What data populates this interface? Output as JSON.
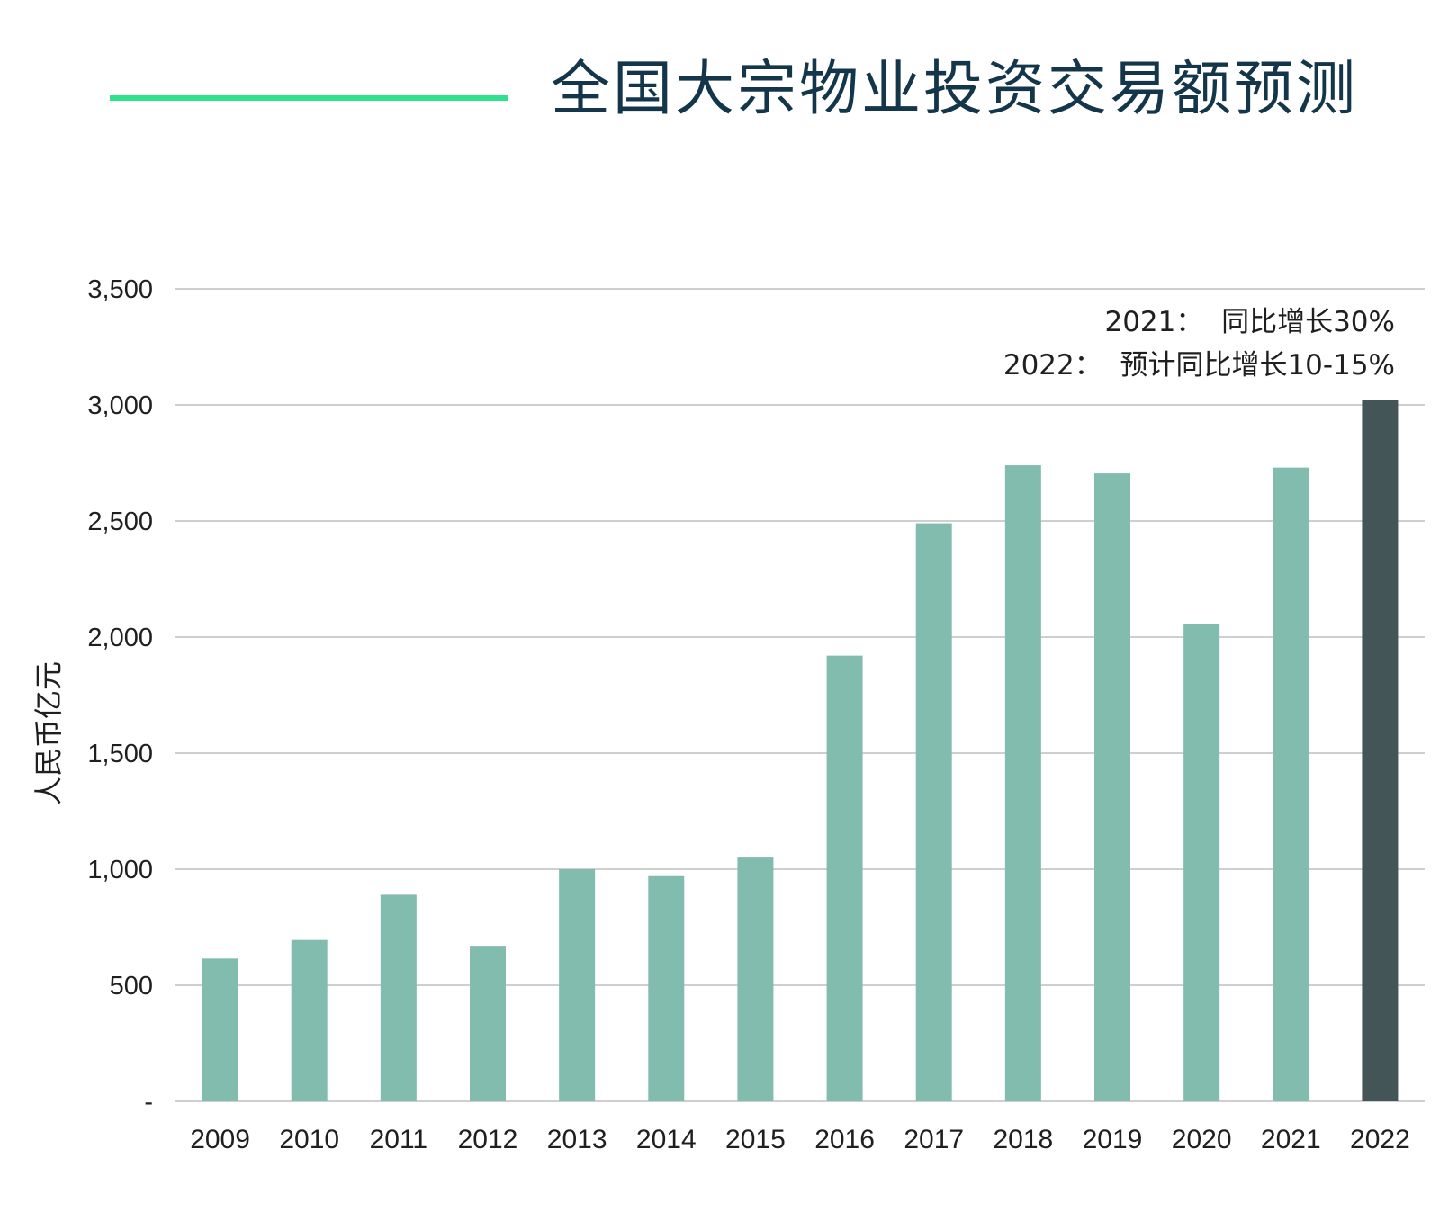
{
  "header": {
    "title": "全国大宗物业投资交易额预测",
    "accent_color": "#2fe08e"
  },
  "annotations": [
    "2021：  同比增长30%",
    "2022：  预计同比增长10-15%"
  ],
  "chart_data": {
    "type": "bar",
    "title": "全国大宗物业投资交易额预测",
    "ylabel": "人民币亿元",
    "xlabel": "",
    "categories": [
      "2009",
      "2010",
      "2011",
      "2012",
      "2013",
      "2014",
      "2015",
      "2016",
      "2017",
      "2018",
      "2019",
      "2020",
      "2021",
      "2022"
    ],
    "values": [
      615,
      695,
      890,
      670,
      1000,
      970,
      1050,
      1920,
      2490,
      2740,
      2705,
      2055,
      2730,
      3020
    ],
    "ylim": [
      0,
      3500
    ],
    "yticks": [
      0,
      500,
      1000,
      1500,
      2000,
      2500,
      3000,
      3500
    ],
    "ytick_labels": [
      "-",
      "500",
      "1,000",
      "1,500",
      "2,000",
      "2,500",
      "3,000",
      "3,500"
    ],
    "grid": true,
    "bar_color": "#82bcae",
    "highlight_index": 13,
    "highlight_color": "#445557"
  }
}
